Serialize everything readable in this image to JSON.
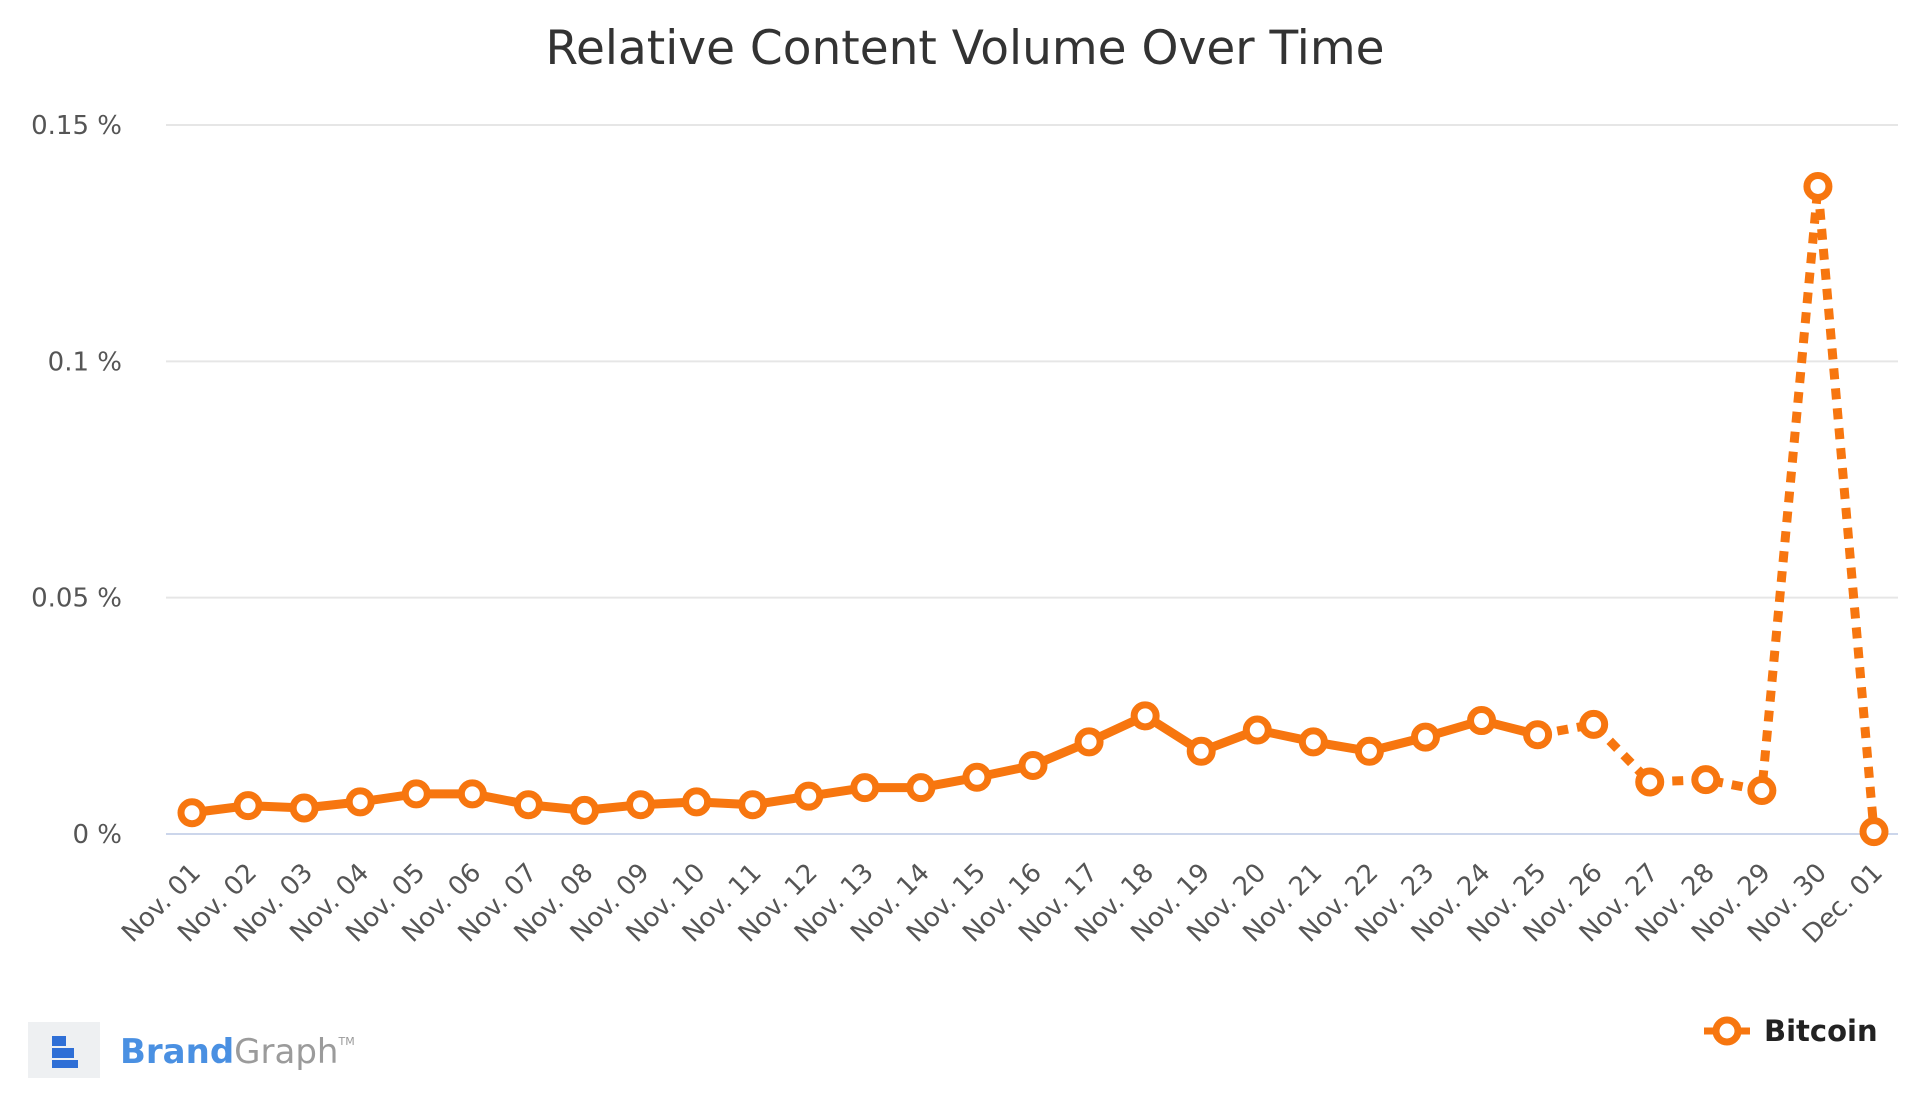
{
  "chart_data": {
    "type": "line",
    "title": "Relative Content Volume Over Time",
    "xlabel": "",
    "ylabel": "",
    "y_unit": "%",
    "ylim": [
      0,
      0.15
    ],
    "y_ticks": [
      0,
      0.05,
      0.1,
      0.15
    ],
    "y_tick_labels": [
      "0 %",
      "0.05 %",
      "0.1 %",
      "0.15 %"
    ],
    "grid": true,
    "legend_position": "bottom-right",
    "categories": [
      "Nov. 01",
      "Nov. 02",
      "Nov. 03",
      "Nov. 04",
      "Nov. 05",
      "Nov. 06",
      "Nov. 07",
      "Nov. 08",
      "Nov. 09",
      "Nov. 10",
      "Nov. 11",
      "Nov. 12",
      "Nov. 13",
      "Nov. 14",
      "Nov. 15",
      "Nov. 16",
      "Nov. 17",
      "Nov. 18",
      "Nov. 19",
      "Nov. 20",
      "Nov. 21",
      "Nov. 22",
      "Nov. 23",
      "Nov. 24",
      "Nov. 25",
      "Nov. 26",
      "Nov. 27",
      "Nov. 28",
      "Nov. 29",
      "Nov. 30",
      "Dec. 01"
    ],
    "series": [
      {
        "name": "Bitcoin",
        "color": "#f7760f",
        "values": [
          0.0045,
          0.006,
          0.0055,
          0.0068,
          0.0085,
          0.0085,
          0.0062,
          0.005,
          0.0062,
          0.0068,
          0.0062,
          0.008,
          0.0098,
          0.0098,
          0.012,
          0.0145,
          0.0195,
          0.025,
          0.0175,
          0.022,
          0.0195,
          0.0175,
          0.0205,
          0.024,
          0.021,
          0.0232,
          0.011,
          0.0115,
          0.0092,
          0.137,
          0.0005
        ],
        "dashed_from_category": "Nov. 25"
      }
    ]
  },
  "branding": {
    "logo_icon": "brandgraph-logo-icon",
    "word_1": "Brand",
    "word_2": "Graph",
    "trademark": "TM",
    "color_1": "#4a90e2",
    "color_2": "#9b9b9b"
  }
}
